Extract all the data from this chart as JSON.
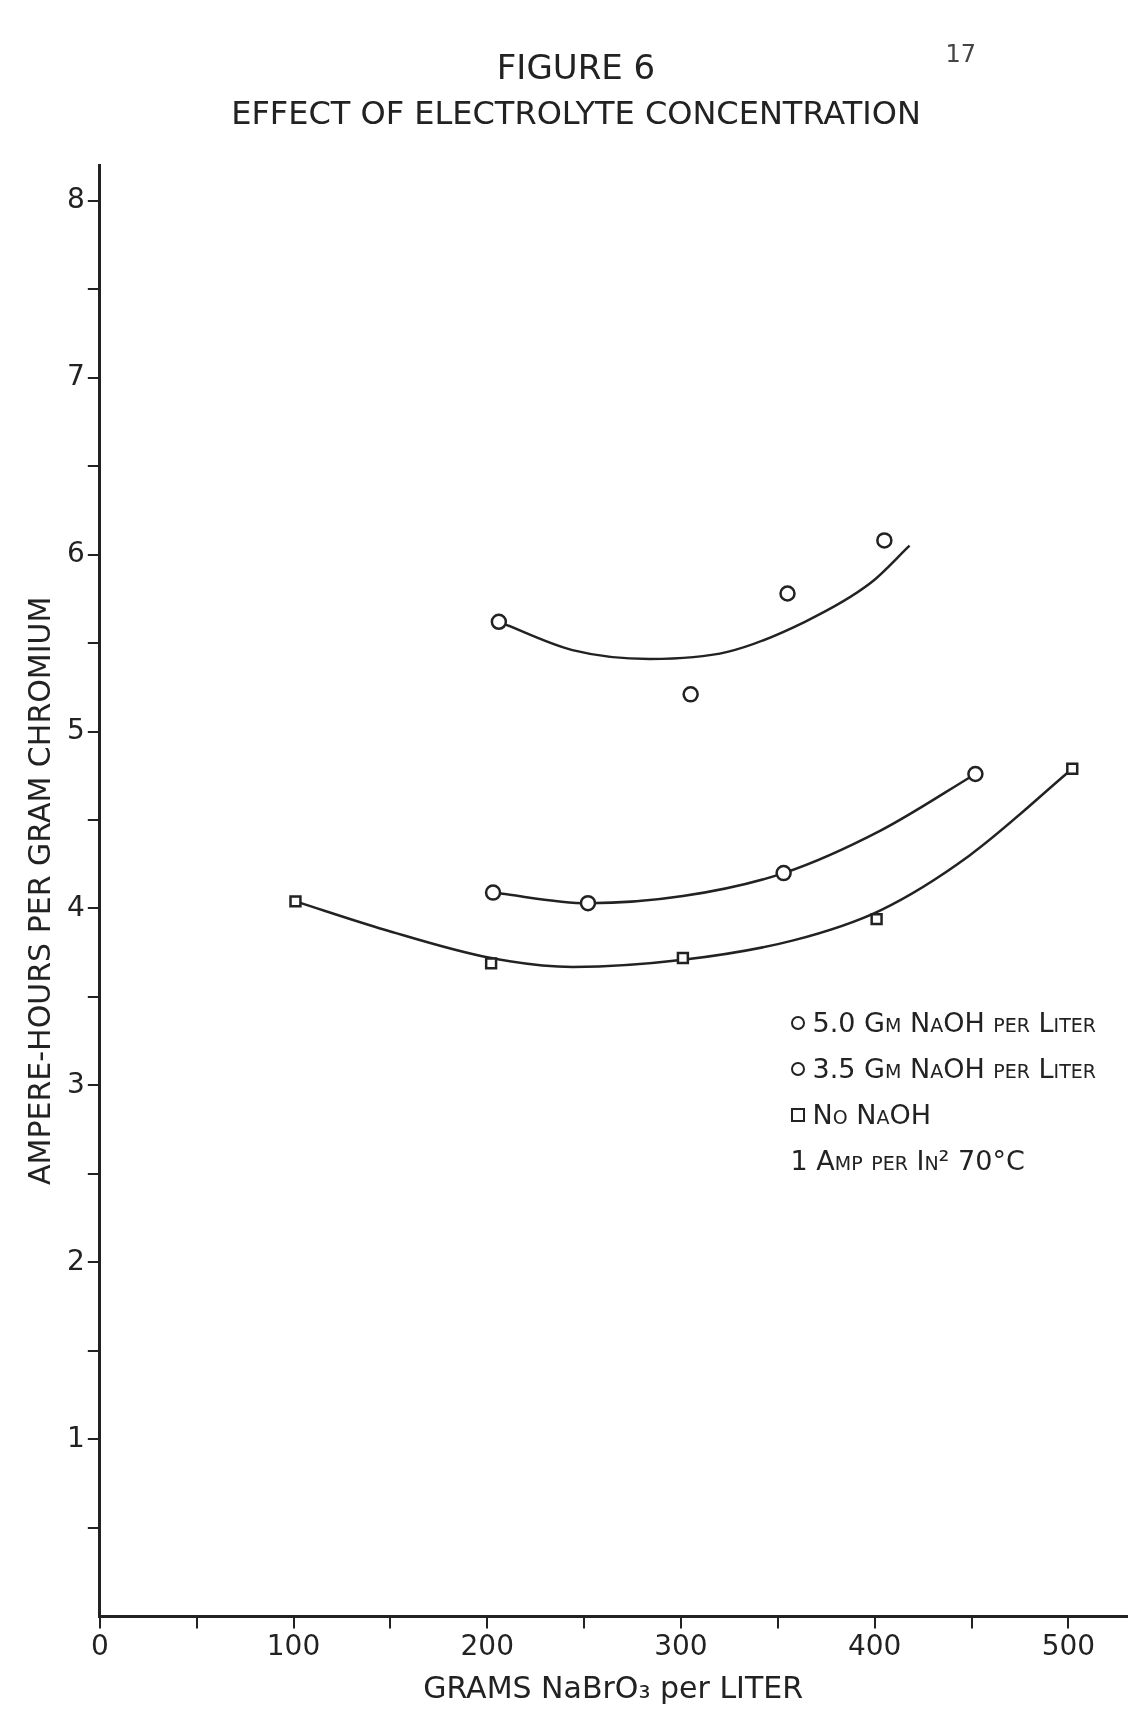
{
  "chart_data": {
    "type": "scatter",
    "title": "FIGURE 6",
    "subtitle": "EFFECT OF ELECTROLYTE CONCENTRATION",
    "xlabel": "GRAMS NaBrO₃ per LITER",
    "ylabel": "AMPERE-HOURS PER GRAM CHROMIUM",
    "series": [
      {
        "name": "5.0 Gm NaOH per Liter",
        "color": "#222222",
        "marker": "circle",
        "x": [
          206,
          305,
          355,
          405
        ],
        "values": [
          5.62,
          5.21,
          5.78,
          6.08
        ]
      },
      {
        "name": "3.5 Gm NaOH per Liter",
        "color": "#222222",
        "marker": "circle",
        "x": [
          203,
          252,
          353,
          452
        ],
        "values": [
          4.09,
          4.03,
          4.2,
          4.76
        ]
      },
      {
        "name": "No NaOH",
        "color": "#222222",
        "marker": "square",
        "x": [
          101,
          202,
          301,
          401,
          502
        ],
        "values": [
          4.04,
          3.69,
          3.72,
          3.94,
          4.79
        ]
      },
      {
        "type": "line",
        "color": "#222222",
        "marker": "none",
        "x": [
          206,
          244,
          284,
          324,
          364,
          398,
          418
        ],
        "values": [
          5.62,
          5.46,
          5.41,
          5.45,
          5.62,
          5.84,
          6.05
        ]
      },
      {
        "type": "line",
        "color": "#222222",
        "marker": "none",
        "x": [
          203,
          252,
          301,
          353,
          403,
          452
        ],
        "values": [
          4.09,
          4.03,
          4.07,
          4.2,
          4.44,
          4.76
        ]
      },
      {
        "type": "line",
        "color": "#222222",
        "marker": "none",
        "x": [
          101,
          147,
          202,
          244,
          301,
          358,
          403,
          449,
          502
        ],
        "values": [
          4.04,
          3.88,
          3.72,
          3.67,
          3.71,
          3.82,
          3.99,
          4.3,
          4.79
        ]
      }
    ],
    "xlim": [
      0,
      530
    ],
    "xticks": [
      0,
      {
        "value": 50,
        "label": null
      },
      100,
      {
        "value": 150,
        "label": null
      },
      200,
      {
        "value": 250,
        "label": null
      },
      300,
      {
        "value": 350,
        "label": null
      },
      400,
      {
        "value": 450,
        "label": null
      },
      500
    ],
    "ylim": [
      0,
      8.2
    ],
    "yticks": [
      {
        "value": 0.5,
        "label": null
      },
      1,
      {
        "value": 1.5,
        "label": null
      },
      2,
      {
        "value": 2.5,
        "label": null
      },
      3,
      {
        "value": 3.5,
        "label": null
      },
      4,
      {
        "value": 4.5,
        "label": null
      },
      5,
      {
        "value": 5.5,
        "label": null
      },
      6,
      {
        "value": 6.5,
        "label": null
      },
      7,
      {
        "value": 7.5,
        "label": null
      },
      8
    ],
    "grid": false,
    "legend": "right",
    "annotations": [
      "17",
      "1 Amp per In² 70°C"
    ]
  }
}
